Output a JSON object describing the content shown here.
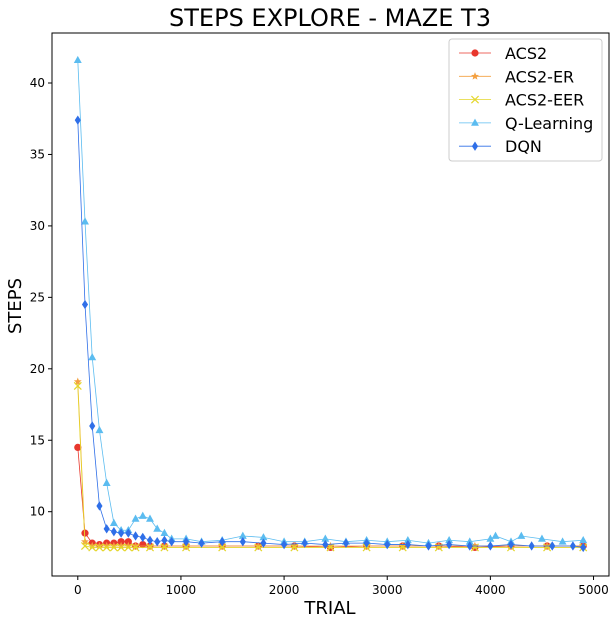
{
  "chart_data": {
    "type": "line",
    "title": "STEPS EXPLORE - MAZE T3",
    "xlabel": "TRIAL",
    "ylabel": "STEPS",
    "xlim": [
      -250,
      5150
    ],
    "ylim": [
      5.5,
      43.5
    ],
    "xticks": [
      0,
      1000,
      2000,
      3000,
      4000,
      5000
    ],
    "yticks": [
      10,
      15,
      20,
      25,
      30,
      35,
      40
    ],
    "grid": false,
    "legend_position": "top-right",
    "series": [
      {
        "name": "ACS2",
        "color": "#e8372d",
        "marker": "circle",
        "x": [
          0,
          70,
          140,
          210,
          280,
          350,
          420,
          490,
          560,
          630,
          700,
          840,
          1050,
          1400,
          1750,
          2100,
          2450,
          2800,
          3150,
          3500,
          3850,
          4200,
          4550,
          4900
        ],
        "y": [
          14.5,
          8.5,
          7.8,
          7.7,
          7.8,
          7.8,
          7.9,
          7.9,
          7.6,
          7.7,
          7.6,
          7.6,
          7.6,
          7.6,
          7.6,
          7.6,
          7.5,
          7.6,
          7.6,
          7.6,
          7.5,
          7.6,
          7.6,
          7.6
        ]
      },
      {
        "name": "ACS2-ER",
        "color": "#f4a040",
        "marker": "star",
        "x": [
          0,
          70,
          140,
          210,
          280,
          350,
          420,
          490,
          560,
          700,
          840,
          1050,
          1400,
          1750,
          2100,
          2450,
          2800,
          3150,
          3500,
          3850,
          4200,
          4550,
          4900
        ],
        "y": [
          19.1,
          7.9,
          7.6,
          7.6,
          7.6,
          7.6,
          7.6,
          7.6,
          7.6,
          7.6,
          7.6,
          7.6,
          7.6,
          7.6,
          7.6,
          7.6,
          7.6,
          7.6,
          7.6,
          7.6,
          7.6,
          7.6,
          7.6
        ]
      },
      {
        "name": "ACS2-EER",
        "color": "#e4d62a",
        "marker": "x",
        "x": [
          0,
          70,
          140,
          210,
          280,
          350,
          420,
          490,
          560,
          700,
          840,
          1050,
          1400,
          1750,
          2100,
          2450,
          2800,
          3150,
          3500,
          3850,
          4200,
          4550,
          4900
        ],
        "y": [
          18.8,
          7.6,
          7.5,
          7.5,
          7.5,
          7.5,
          7.5,
          7.5,
          7.5,
          7.5,
          7.5,
          7.5,
          7.5,
          7.5,
          7.5,
          7.5,
          7.5,
          7.5,
          7.5,
          7.5,
          7.5,
          7.5,
          7.5
        ]
      },
      {
        "name": "Q-Learning",
        "color": "#5bbcf0",
        "marker": "triangle",
        "x": [
          0,
          70,
          140,
          210,
          280,
          350,
          420,
          490,
          560,
          630,
          700,
          770,
          840,
          910,
          1050,
          1200,
          1400,
          1600,
          1800,
          2000,
          2200,
          2400,
          2600,
          2800,
          3000,
          3200,
          3400,
          3600,
          3800,
          4000,
          4050,
          4200,
          4300,
          4500,
          4700,
          4900
        ],
        "y": [
          41.6,
          30.3,
          20.8,
          15.7,
          12.0,
          9.2,
          8.7,
          8.7,
          9.5,
          9.7,
          9.5,
          8.8,
          8.5,
          8.1,
          8.1,
          7.9,
          8.0,
          8.3,
          8.2,
          7.9,
          7.9,
          8.1,
          7.9,
          8.0,
          7.9,
          8.0,
          7.8,
          8.0,
          7.9,
          8.1,
          8.3,
          7.9,
          8.3,
          8.1,
          7.9,
          8.0
        ]
      },
      {
        "name": "DQN",
        "color": "#2f6fe8",
        "marker": "diamond",
        "x": [
          0,
          70,
          140,
          210,
          280,
          350,
          420,
          490,
          560,
          630,
          700,
          770,
          840,
          910,
          1050,
          1200,
          1400,
          1600,
          1800,
          2000,
          2200,
          2400,
          2600,
          2800,
          3000,
          3200,
          3400,
          3600,
          3800,
          4000,
          4200,
          4400,
          4600,
          4800,
          4900
        ],
        "y": [
          37.4,
          24.5,
          16.0,
          10.4,
          8.8,
          8.6,
          8.5,
          8.5,
          8.3,
          8.2,
          8.0,
          7.9,
          8.0,
          7.9,
          7.9,
          7.8,
          7.9,
          7.9,
          7.8,
          7.7,
          7.8,
          7.7,
          7.8,
          7.8,
          7.7,
          7.7,
          7.6,
          7.7,
          7.6,
          7.6,
          7.7,
          7.6,
          7.6,
          7.6,
          7.5
        ]
      }
    ]
  }
}
